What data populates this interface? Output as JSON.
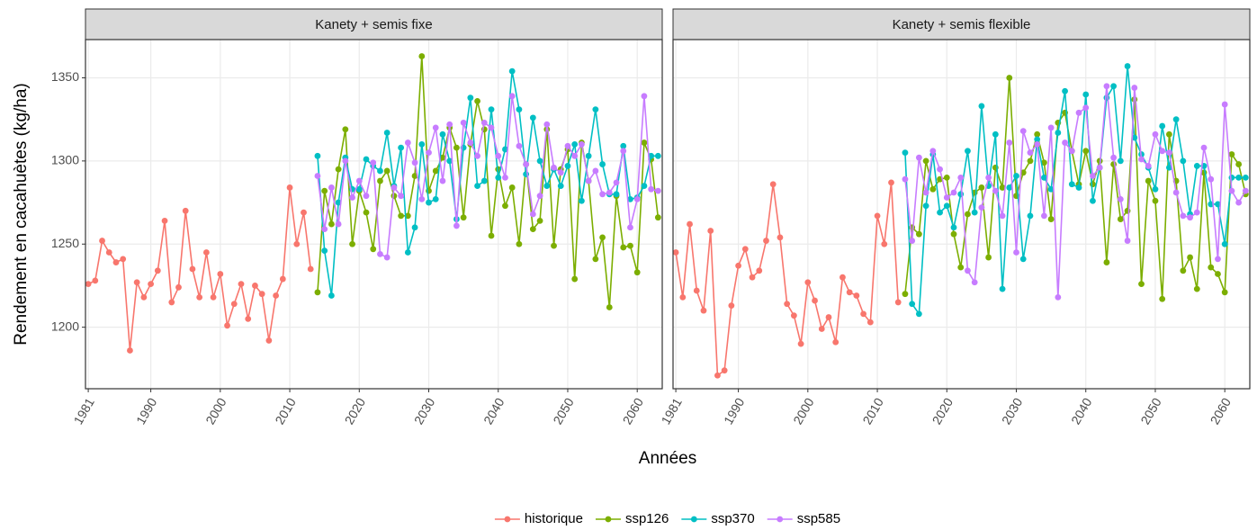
{
  "xlabel": "Années",
  "ylabel": "Rendement en cacahuètes (kg/ha)",
  "legend": "bottom",
  "chart_data": [
    {
      "type": "line",
      "title": "Kanety + semis fixe",
      "x": [
        1981,
        1982,
        1983,
        1984,
        1985,
        1986,
        1987,
        1988,
        1989,
        1990,
        1991,
        1992,
        1993,
        1994,
        1995,
        1996,
        1997,
        1998,
        1999,
        2000,
        2001,
        2002,
        2003,
        2004,
        2005,
        2006,
        2007,
        2008,
        2009,
        2010,
        2011,
        2012,
        2013,
        2014,
        2015,
        2016,
        2017,
        2018,
        2019,
        2020,
        2021,
        2022,
        2023,
        2024,
        2025,
        2026,
        2027,
        2028,
        2029,
        2030,
        2031,
        2032,
        2033,
        2034,
        2035,
        2036,
        2037,
        2038,
        2039,
        2040,
        2041,
        2042,
        2043,
        2044,
        2045,
        2046,
        2047,
        2048,
        2049,
        2050,
        2051,
        2052,
        2053,
        2054,
        2055,
        2056,
        2057,
        2058,
        2059,
        2060,
        2061,
        2062,
        2063
      ],
      "xlim": [
        1980.6,
        2063.6
      ],
      "xticks": [
        1981,
        1990,
        2000,
        2010,
        2020,
        2030,
        2040,
        2050,
        2060
      ],
      "ylim": [
        1163,
        1373
      ],
      "yticks": [
        1200,
        1250,
        1300,
        1350
      ],
      "grid": true,
      "series": [
        {
          "name": "historique",
          "color": "#F8766D",
          "values": [
            1226,
            1228,
            1252,
            1245,
            1239,
            1241,
            1186,
            1227,
            1218,
            1226,
            1234,
            1264,
            1215,
            1224,
            1270,
            1235,
            1218,
            1245,
            1218,
            1232,
            1201,
            1214,
            1226,
            1205,
            1225,
            1220,
            1192,
            1219,
            1229,
            1284,
            1250,
            1269,
            1235,
            null,
            null,
            null,
            null,
            null,
            null,
            null,
            null,
            null,
            null,
            null,
            null,
            null,
            null,
            null,
            null,
            null,
            null,
            null,
            null,
            null,
            null,
            null,
            null,
            null,
            null,
            null,
            null,
            null,
            null,
            null,
            null,
            null,
            null,
            null,
            null,
            null,
            null,
            null,
            null,
            null,
            null,
            null,
            null,
            null,
            null,
            null,
            null,
            null,
            null
          ]
        },
        {
          "name": "ssp126",
          "color": "#7CAE00",
          "values": [
            null,
            null,
            null,
            null,
            null,
            null,
            null,
            null,
            null,
            null,
            null,
            null,
            null,
            null,
            null,
            null,
            null,
            null,
            null,
            null,
            null,
            null,
            null,
            null,
            null,
            null,
            null,
            null,
            null,
            null,
            null,
            null,
            null,
            1221,
            1282,
            1262,
            1295,
            1319,
            1250,
            1282,
            1269,
            1247,
            1288,
            1294,
            1279,
            1267,
            1267,
            1291,
            1363,
            1282,
            1294,
            1302,
            1320,
            1308,
            1266,
            1310,
            1336,
            1319,
            1255,
            1295,
            1273,
            1284,
            1250,
            1298,
            1259,
            1264,
            1319,
            1249,
            1295,
            1307,
            1229,
            1311,
            1288,
            1241,
            1254,
            1212,
            1279,
            1248,
            1249,
            1233,
            1311,
            1301,
            1266
          ]
        },
        {
          "name": "ssp370",
          "color": "#00BFC4",
          "values": [
            null,
            null,
            null,
            null,
            null,
            null,
            null,
            null,
            null,
            null,
            null,
            null,
            null,
            null,
            null,
            null,
            null,
            null,
            null,
            null,
            null,
            null,
            null,
            null,
            null,
            null,
            null,
            null,
            null,
            null,
            null,
            null,
            null,
            1303,
            1246,
            1219,
            1275,
            1302,
            1283,
            1283,
            1301,
            1297,
            1294,
            1317,
            1285,
            1308,
            1245,
            1260,
            1310,
            1275,
            1277,
            1316,
            1300,
            1265,
            1308,
            1338,
            1285,
            1288,
            1331,
            1290,
            1307,
            1354,
            1331,
            1292,
            1326,
            1300,
            1285,
            1295,
            1285,
            1297,
            1310,
            1276,
            1303,
            1331,
            1298,
            1280,
            1280,
            1309,
            1277,
            1278,
            1285,
            1303,
            1303
          ]
        },
        {
          "name": "ssp585",
          "color": "#C77CFF",
          "values": [
            null,
            null,
            null,
            null,
            null,
            null,
            null,
            null,
            null,
            null,
            null,
            null,
            null,
            null,
            null,
            null,
            null,
            null,
            null,
            null,
            null,
            null,
            null,
            null,
            null,
            null,
            null,
            null,
            null,
            null,
            null,
            null,
            null,
            1291,
            1259,
            1284,
            1262,
            1300,
            1278,
            1288,
            1279,
            1299,
            1244,
            1242,
            1284,
            1279,
            1311,
            1299,
            1277,
            1305,
            1320,
            1288,
            1322,
            1261,
            1323,
            1311,
            1303,
            1323,
            1320,
            1303,
            1290,
            1339,
            1309,
            1298,
            1268,
            1279,
            1322,
            1296,
            1293,
            1309,
            1303,
            1310,
            1288,
            1294,
            1280,
            1281,
            1287,
            1306,
            1260,
            1277,
            1339,
            1283,
            1282
          ]
        }
      ]
    },
    {
      "type": "line",
      "title": "Kanety + semis flexible",
      "x": [
        1981,
        1982,
        1983,
        1984,
        1985,
        1986,
        1987,
        1988,
        1989,
        1990,
        1991,
        1992,
        1993,
        1994,
        1995,
        1996,
        1997,
        1998,
        1999,
        2000,
        2001,
        2002,
        2003,
        2004,
        2005,
        2006,
        2007,
        2008,
        2009,
        2010,
        2011,
        2012,
        2013,
        2014,
        2015,
        2016,
        2017,
        2018,
        2019,
        2020,
        2021,
        2022,
        2023,
        2024,
        2025,
        2026,
        2027,
        2028,
        2029,
        2030,
        2031,
        2032,
        2033,
        2034,
        2035,
        2036,
        2037,
        2038,
        2039,
        2040,
        2041,
        2042,
        2043,
        2044,
        2045,
        2046,
        2047,
        2048,
        2049,
        2050,
        2051,
        2052,
        2053,
        2054,
        2055,
        2056,
        2057,
        2058,
        2059,
        2060,
        2061,
        2062,
        2063
      ],
      "xlim": [
        1980.6,
        2063.6
      ],
      "xticks": [
        1981,
        1990,
        2000,
        2010,
        2020,
        2030,
        2040,
        2050,
        2060
      ],
      "ylim": [
        1163,
        1373
      ],
      "yticks": [
        1200,
        1250,
        1300,
        1350
      ],
      "grid": true,
      "series": [
        {
          "name": "historique",
          "color": "#F8766D",
          "values": [
            1245,
            1218,
            1262,
            1222,
            1210,
            1258,
            1171,
            1174,
            1213,
            1237,
            1247,
            1230,
            1234,
            1252,
            1286,
            1254,
            1214,
            1207,
            1190,
            1227,
            1216,
            1199,
            1206,
            1191,
            1230,
            1221,
            1219,
            1208,
            1203,
            1267,
            1250,
            1287,
            1215,
            null,
            null,
            null,
            null,
            null,
            null,
            null,
            null,
            null,
            null,
            null,
            null,
            null,
            null,
            null,
            null,
            null,
            null,
            null,
            null,
            null,
            null,
            null,
            null,
            null,
            null,
            null,
            null,
            null,
            null,
            null,
            null,
            null,
            null,
            null,
            null,
            null,
            null,
            null,
            null,
            null,
            null,
            null,
            null,
            null,
            null,
            null,
            null,
            null,
            null
          ]
        },
        {
          "name": "ssp126",
          "color": "#7CAE00",
          "values": [
            null,
            null,
            null,
            null,
            null,
            null,
            null,
            null,
            null,
            null,
            null,
            null,
            null,
            null,
            null,
            null,
            null,
            null,
            null,
            null,
            null,
            null,
            null,
            null,
            null,
            null,
            null,
            null,
            null,
            null,
            null,
            null,
            null,
            1220,
            1260,
            1256,
            1300,
            1283,
            1289,
            1290,
            1256,
            1236,
            1268,
            1281,
            1284,
            1242,
            1296,
            1284,
            1350,
            1279,
            1293,
            1300,
            1316,
            1299,
            1265,
            1323,
            1329,
            1306,
            1286,
            1306,
            1286,
            1300,
            1239,
            1298,
            1265,
            1270,
            1337,
            1226,
            1288,
            1276,
            1217,
            1316,
            1288,
            1234,
            1242,
            1223,
            1293,
            1236,
            1232,
            1221,
            1304,
            1298,
            1280
          ]
        },
        {
          "name": "ssp370",
          "color": "#00BFC4",
          "values": [
            null,
            null,
            null,
            null,
            null,
            null,
            null,
            null,
            null,
            null,
            null,
            null,
            null,
            null,
            null,
            null,
            null,
            null,
            null,
            null,
            null,
            null,
            null,
            null,
            null,
            null,
            null,
            null,
            null,
            null,
            null,
            null,
            null,
            1305,
            1214,
            1208,
            1273,
            1304,
            1269,
            1273,
            1260,
            1280,
            1306,
            1269,
            1333,
            1285,
            1316,
            1223,
            1284,
            1291,
            1241,
            1267,
            1313,
            1290,
            1283,
            1317,
            1342,
            1286,
            1284,
            1340,
            1276,
            1296,
            1338,
            1345,
            1300,
            1357,
            1314,
            1304,
            1296,
            1283,
            1321,
            1296,
            1325,
            1300,
            1268,
            1297,
            1297,
            1274,
            1274,
            1250,
            1290,
            1290,
            1290
          ]
        },
        {
          "name": "ssp585",
          "color": "#C77CFF",
          "values": [
            null,
            null,
            null,
            null,
            null,
            null,
            null,
            null,
            null,
            null,
            null,
            null,
            null,
            null,
            null,
            null,
            null,
            null,
            null,
            null,
            null,
            null,
            null,
            null,
            null,
            null,
            null,
            null,
            null,
            null,
            null,
            null,
            null,
            1289,
            1252,
            1302,
            1281,
            1306,
            1295,
            1278,
            1281,
            1290,
            1234,
            1227,
            1272,
            1290,
            1282,
            1267,
            1311,
            1245,
            1318,
            1305,
            1310,
            1267,
            1320,
            1218,
            1311,
            1306,
            1329,
            1332,
            1291,
            1296,
            1345,
            1302,
            1277,
            1252,
            1344,
            1301,
            1297,
            1316,
            1306,
            1305,
            1281,
            1267,
            1266,
            1269,
            1308,
            1289,
            1241,
            1334,
            1282,
            1275,
            1282
          ]
        }
      ]
    }
  ]
}
